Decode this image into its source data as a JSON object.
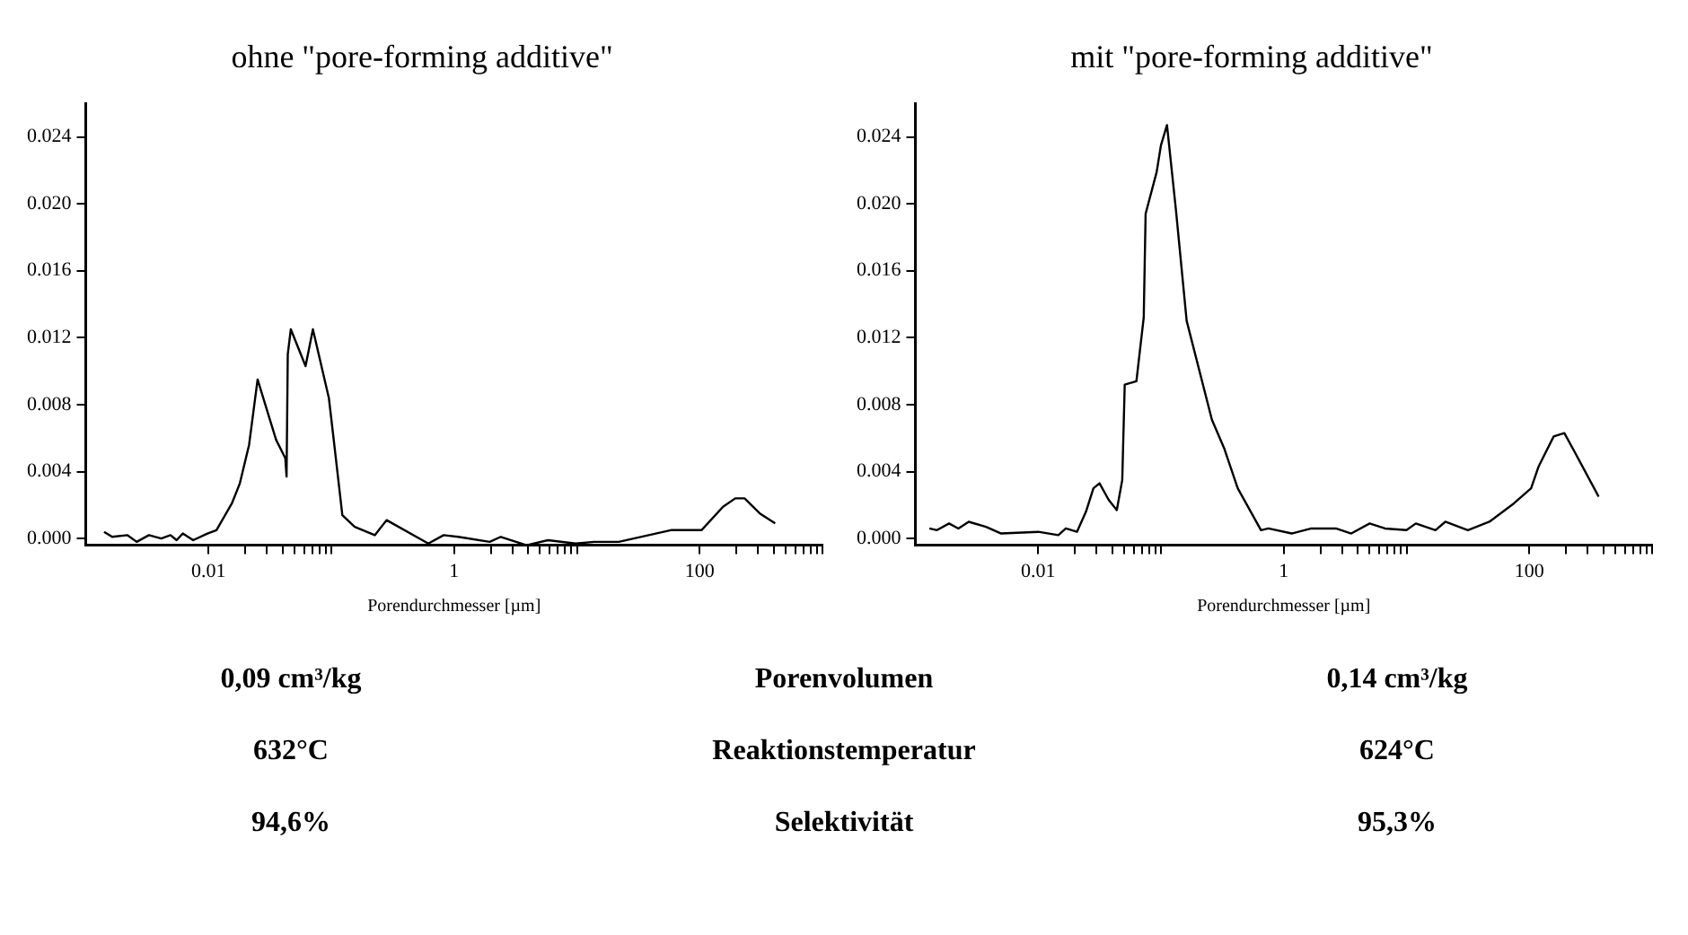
{
  "chart_data": [
    {
      "type": "line",
      "title": "ohne \"pore-forming additive\"",
      "xlabel": "Porendurchmesser [µm]",
      "log": "x",
      "grid": false,
      "legend": false,
      "marker": "none",
      "line_style": "solid",
      "xlim": [
        0.001,
        1000
      ],
      "ylim": [
        -0.0004,
        0.026
      ],
      "xticks": [
        {
          "value": 0.01,
          "label": "0.01"
        },
        {
          "value": 0.02,
          "label": null
        },
        {
          "value": 0.03,
          "label": null
        },
        {
          "value": 0.04,
          "label": null
        },
        {
          "value": 0.05,
          "label": null
        },
        {
          "value": 0.06,
          "label": null
        },
        {
          "value": 0.07,
          "label": null
        },
        {
          "value": 0.08,
          "label": null
        },
        {
          "value": 0.09,
          "label": null
        },
        {
          "value": 0.1,
          "label": null
        },
        {
          "value": 1,
          "label": "1"
        },
        {
          "value": 2,
          "label": null
        },
        {
          "value": 3,
          "label": null
        },
        {
          "value": 4,
          "label": null
        },
        {
          "value": 5,
          "label": null
        },
        {
          "value": 6,
          "label": null
        },
        {
          "value": 7,
          "label": null
        },
        {
          "value": 8,
          "label": null
        },
        {
          "value": 9,
          "label": null
        },
        {
          "value": 10,
          "label": null
        },
        {
          "value": 100,
          "label": "100"
        },
        {
          "value": 200,
          "label": null
        },
        {
          "value": 300,
          "label": null
        },
        {
          "value": 400,
          "label": null
        },
        {
          "value": 500,
          "label": null
        },
        {
          "value": 600,
          "label": null
        },
        {
          "value": 700,
          "label": null
        },
        {
          "value": 800,
          "label": null
        },
        {
          "value": 900,
          "label": null
        },
        {
          "value": 1000,
          "label": null
        }
      ],
      "yticks": [
        {
          "value": 0,
          "label": "0.000"
        },
        {
          "value": 0.004,
          "label": "0.004"
        },
        {
          "value": 0.008,
          "label": "0.008"
        },
        {
          "value": 0.012,
          "label": "0.012"
        },
        {
          "value": 0.016,
          "label": "0.016"
        },
        {
          "value": 0.02,
          "label": "0.020"
        },
        {
          "value": 0.024,
          "label": "0.024"
        }
      ],
      "series": [
        {
          "color": "#000000",
          "x": [
            0.00141,
            0.00164,
            0.00219,
            0.0026,
            0.00327,
            0.00412,
            0.0049,
            0.0055,
            0.00617,
            0.0075,
            0.0098,
            0.0116,
            0.0155,
            0.018,
            0.0214,
            0.0251,
            0.0316,
            0.0355,
            0.0422,
            0.0432,
            0.0442,
            0.0468,
            0.0617,
            0.0708,
            0.0955,
            0.1035,
            0.123,
            0.155,
            0.226,
            0.282,
            0.617,
            0.822,
            1.08,
            1.95,
            2.4,
            3.89,
            5.82,
            9.77,
            13.8,
            21.9,
            58.2,
            103.5,
            155,
            195,
            232,
            309,
            412
          ],
          "values": [
            0.0004,
            0.0001,
            0.0002,
            -0.0002,
            0.0002,
            0,
            0.0002,
            -0.0001,
            0.0003,
            -0.0001,
            0.0003,
            0.0005,
            0.0021,
            0.0033,
            0.0056,
            0.0095,
            0.0071,
            0.0059,
            0.0048,
            0.0037,
            0.011,
            0.0125,
            0.0103,
            0.0125,
            0.0084,
            0.0062,
            0.0014,
            0.0007,
            0.0002,
            0.0011,
            -0.0003,
            0.0002,
            0.0001,
            -0.0002,
            0.0001,
            -0.0004,
            -0.0001,
            -0.0003,
            -0.0002,
            -0.0002,
            0.0005,
            0.0005,
            0.0019,
            0.0024,
            0.0024,
            0.0015,
            0.0009
          ]
        }
      ]
    },
    {
      "type": "line",
      "title": "mit \"pore-forming additive\"",
      "xlabel": "Porendurchmesser [µm]",
      "log": "x",
      "grid": false,
      "legend": false,
      "marker": "none",
      "line_style": "solid",
      "xlim": [
        0.001,
        1000
      ],
      "ylim": [
        -0.0004,
        0.026
      ],
      "xticks": [
        {
          "value": 0.01,
          "label": "0.01"
        },
        {
          "value": 0.02,
          "label": null
        },
        {
          "value": 0.03,
          "label": null
        },
        {
          "value": 0.04,
          "label": null
        },
        {
          "value": 0.05,
          "label": null
        },
        {
          "value": 0.06,
          "label": null
        },
        {
          "value": 0.07,
          "label": null
        },
        {
          "value": 0.08,
          "label": null
        },
        {
          "value": 0.09,
          "label": null
        },
        {
          "value": 0.1,
          "label": null
        },
        {
          "value": 1,
          "label": "1"
        },
        {
          "value": 2,
          "label": null
        },
        {
          "value": 3,
          "label": null
        },
        {
          "value": 4,
          "label": null
        },
        {
          "value": 5,
          "label": null
        },
        {
          "value": 6,
          "label": null
        },
        {
          "value": 7,
          "label": null
        },
        {
          "value": 8,
          "label": null
        },
        {
          "value": 9,
          "label": null
        },
        {
          "value": 10,
          "label": null
        },
        {
          "value": 100,
          "label": "100"
        },
        {
          "value": 200,
          "label": null
        },
        {
          "value": 300,
          "label": null
        },
        {
          "value": 400,
          "label": null
        },
        {
          "value": 500,
          "label": null
        },
        {
          "value": 600,
          "label": null
        },
        {
          "value": 700,
          "label": null
        },
        {
          "value": 800,
          "label": null
        },
        {
          "value": 900,
          "label": null
        },
        {
          "value": 1000,
          "label": null
        }
      ],
      "yticks": [
        {
          "value": 0,
          "label": "0.000"
        },
        {
          "value": 0.004,
          "label": "0.004"
        },
        {
          "value": 0.008,
          "label": "0.008"
        },
        {
          "value": 0.012,
          "label": "0.012"
        },
        {
          "value": 0.016,
          "label": "0.016"
        },
        {
          "value": 0.02,
          "label": "0.020"
        },
        {
          "value": 0.024,
          "label": "0.024"
        }
      ],
      "series": [
        {
          "color": "#000000",
          "x": [
            0.0013,
            0.0015,
            0.00188,
            0.00224,
            0.00272,
            0.00376,
            0.005,
            0.01,
            0.0146,
            0.0168,
            0.0207,
            0.0245,
            0.0282,
            0.0316,
            0.0376,
            0.0437,
            0.0484,
            0.0507,
            0.0631,
            0.0724,
            0.075,
            0.0923,
            0.1,
            0.112,
            0.133,
            0.162,
            0.26,
            0.327,
            0.422,
            0.653,
            0.75,
            1.16,
            1.68,
            2.66,
            3.55,
            5.01,
            6.68,
            10,
            11.9,
            17.2,
            20.7,
            31.6,
            47.3,
            75,
            103.5,
            119,
            158,
            193,
            237,
            367
          ],
          "values": [
            0.0006,
            0.0005,
            0.0009,
            0.0006,
            0.001,
            0.0007,
            0.0003,
            0.0004,
            0.0002,
            0.0006,
            0.0004,
            0.0016,
            0.003,
            0.0033,
            0.0023,
            0.0017,
            0.0035,
            0.0092,
            0.0094,
            0.0132,
            0.0194,
            0.0219,
            0.0235,
            0.0247,
            0.0195,
            0.013,
            0.0071,
            0.0054,
            0.003,
            0.0005,
            0.0006,
            0.0003,
            0.0006,
            0.0006,
            0.0003,
            0.0009,
            0.0006,
            0.0005,
            0.0009,
            0.0005,
            0.001,
            0.0005,
            0.001,
            0.0021,
            0.003,
            0.0043,
            0.0061,
            0.0063,
            0.0051,
            0.0025
          ]
        }
      ]
    },
    {
      "type": "other",
      "annotations": [
        "0,09 cm³/kg",
        "Porenvolumen",
        "0,14 cm³/kg",
        "632°C",
        "Reaktionstemperatur",
        "624°C",
        "94,6%",
        "Selektivität",
        "95,3%"
      ]
    }
  ]
}
